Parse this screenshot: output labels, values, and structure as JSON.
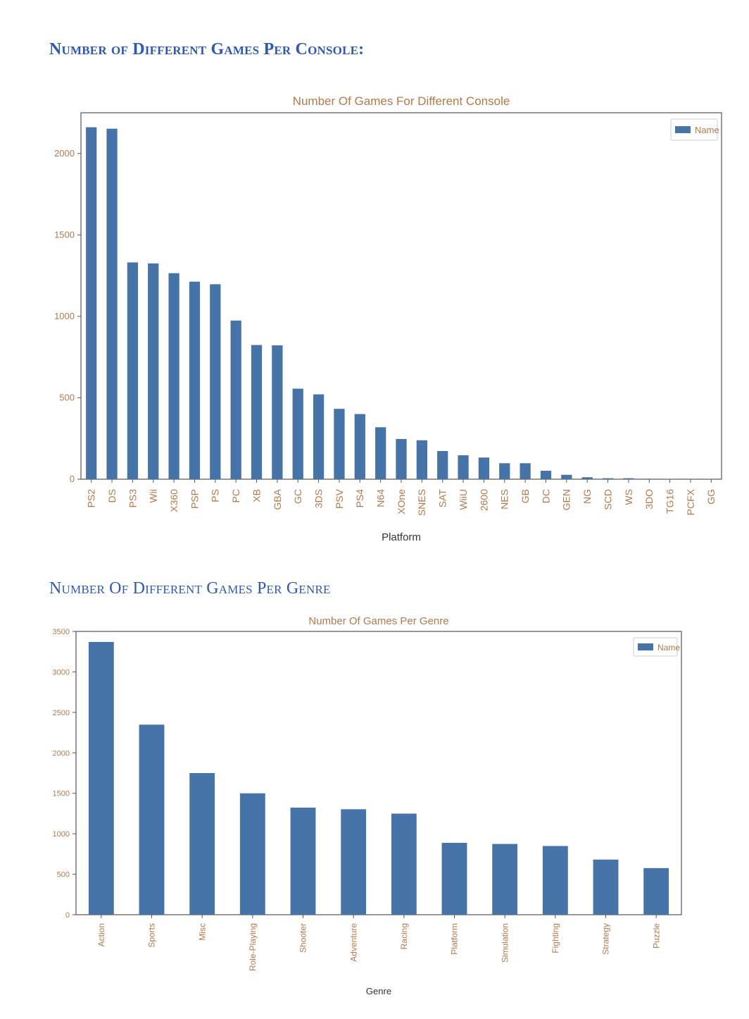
{
  "headings": {
    "console": "Number of Different Games Per Console:",
    "genre": "Number Of Different Games Per Genre"
  },
  "colors": {
    "bar": "#4674a8",
    "tick_text": "#b07a4c",
    "heading": "#2f58b3"
  },
  "chart_data": [
    {
      "type": "bar",
      "title": "Number Of Games For Different Console",
      "xlabel": "Platform",
      "ylabel": "",
      "legend": "top-right",
      "ylim": [
        0,
        2250
      ],
      "yticks": [
        0,
        500,
        1000,
        1500,
        2000
      ],
      "categories": [
        "PS2",
        "DS",
        "PS3",
        "Wii",
        "X360",
        "PSP",
        "PS",
        "PC",
        "XB",
        "GBA",
        "GC",
        "3DS",
        "PSV",
        "PS4",
        "N64",
        "XOne",
        "SNES",
        "SAT",
        "WiiU",
        "2600",
        "NES",
        "GB",
        "DC",
        "GEN",
        "NG",
        "SCD",
        "WS",
        "3DO",
        "TG16",
        "PCFX",
        "GG"
      ],
      "series": [
        {
          "name": "Name",
          "values": [
            2161,
            2152,
            1331,
            1325,
            1265,
            1213,
            1197,
            974,
            824,
            822,
            556,
            521,
            432,
            400,
            319,
            247,
            239,
            173,
            147,
            133,
            98,
            98,
            52,
            27,
            12,
            6,
            6,
            3,
            2,
            1,
            1
          ]
        }
      ]
    },
    {
      "type": "bar",
      "title": "Number Of Games Per Genre",
      "xlabel": "Genre",
      "ylabel": "",
      "legend": "top-right",
      "ylim": [
        0,
        3500
      ],
      "yticks": [
        0,
        500,
        1000,
        1500,
        2000,
        2500,
        3000,
        3500
      ],
      "categories": [
        "Action",
        "Sports",
        "Misc",
        "Role-Playing",
        "Shooter",
        "Adventure",
        "Racing",
        "Platform",
        "Simulation",
        "Fighting",
        "Strategy",
        "Puzzle"
      ],
      "series": [
        {
          "name": "Name",
          "values": [
            3370,
            2348,
            1750,
            1500,
            1323,
            1303,
            1249,
            888,
            874,
            849,
            681,
            576
          ]
        }
      ]
    }
  ]
}
